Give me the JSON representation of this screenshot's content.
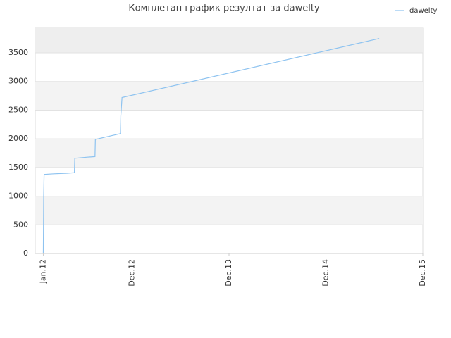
{
  "chart_data": {
    "type": "line",
    "title": "Комплетан график резултат за dawelty",
    "x": [
      0,
      0.05,
      0.1,
      1.3,
      3.0,
      3.85,
      3.9,
      5.45,
      6.4,
      6.45,
      9.55,
      9.6,
      9.75,
      41.6
    ],
    "series": [
      {
        "name": "dawelty",
        "color": "#8ec3f0",
        "values": [
          0,
          1000,
          1380,
          1390,
          1400,
          1410,
          1660,
          1680,
          1690,
          1990,
          2090,
          2400,
          2720,
          3750
        ]
      }
    ],
    "xlim": [
      -1,
      47
    ],
    "xticks": [
      {
        "value": 0,
        "label": "Jan.12"
      },
      {
        "value": 11,
        "label": "Dec.12"
      },
      {
        "value": 23,
        "label": "Dec.13"
      },
      {
        "value": 35,
        "label": "Dec.14"
      },
      {
        "value": 47,
        "label": "Dec.15"
      }
    ],
    "ylim": [
      0,
      3930
    ],
    "yticks": [
      0,
      500,
      1000,
      1500,
      2000,
      2500,
      3000,
      3500
    ],
    "grid": true,
    "legend": "top-right"
  }
}
